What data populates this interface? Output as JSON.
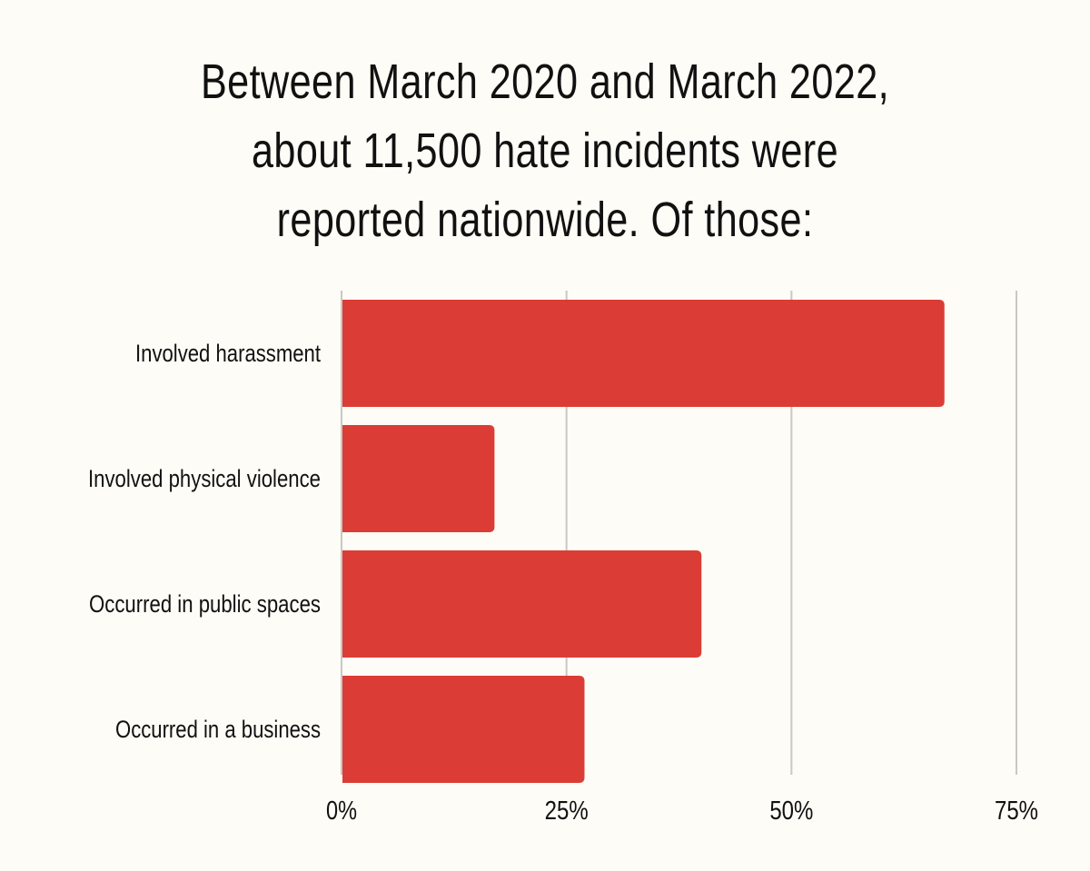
{
  "chart_data": {
    "type": "bar",
    "orientation": "horizontal",
    "title_lines": [
      "Between March 2020 and March 2022,",
      "about 11,500 hate incidents were",
      "reported nationwide. Of those:"
    ],
    "categories": [
      "Involved harassment",
      "Involved physical violence",
      "Occurred in public spaces",
      "Occurred in a business"
    ],
    "values": [
      67,
      17,
      40,
      27
    ],
    "unit": "%",
    "xlim": [
      0,
      75
    ],
    "xticks": [
      0,
      25,
      50,
      75
    ],
    "xtick_labels": [
      "0%",
      "25%",
      "50%",
      "75%"
    ],
    "grid": true,
    "xlabel": "",
    "ylabel": ""
  },
  "colors": {
    "bar": "#db3d36",
    "grid": "#c8c8c4",
    "background": "#fdfcf6",
    "text": "#111111"
  }
}
